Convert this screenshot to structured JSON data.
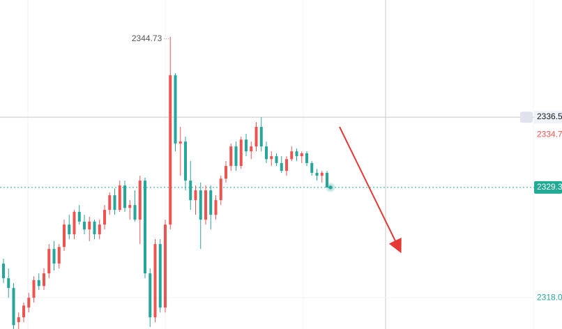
{
  "chart_data": {
    "type": "candlestick",
    "ylim": [
      2314.8,
      2348.5
    ],
    "yticks": [
      {
        "value": 2318.0,
        "label": "2318.0"
      }
    ],
    "crosshair_price": 2336.5,
    "marker_price": 2334.7,
    "last_price": 2329.3,
    "up_color": "#ef5350",
    "down_color": "#26a69a",
    "open": [
      2321.5,
      2320.0,
      2319.0,
      2315.5,
      2316.0,
      2317.0,
      2318.0,
      2319.8,
      2319.2,
      2320.5,
      2323.0,
      2321.5,
      2323.2,
      2325.5,
      2324.5,
      2326.8,
      2325.8,
      2325.0,
      2325.8,
      2324.5,
      2325.5,
      2327.0,
      2328.5,
      2327.0,
      2329.5,
      2327.2,
      2327.5,
      2326.0,
      2330.0,
      2320.5,
      2316.0,
      2323.5,
      2317.0,
      2325.5,
      2340.8,
      2333.8,
      2334.0,
      2330.0,
      2328.0,
      2329.0,
      2326.0,
      2329.0,
      2326.5,
      2328.0,
      2330.2,
      2331.5,
      2333.5,
      2331.5,
      2334.2,
      2333.0,
      2333.5,
      2335.5,
      2333.5,
      2332.2,
      2332.5,
      2331.8,
      2331.0,
      2332.2,
      2333.0,
      2332.5,
      2332.8,
      2331.8,
      2330.8,
      2330.5,
      2330.8
    ],
    "high": [
      2322.0,
      2321.0,
      2319.5,
      2316.5,
      2317.5,
      2318.5,
      2320.2,
      2320.5,
      2321.0,
      2323.5,
      2323.8,
      2323.5,
      2326.0,
      2326.5,
      2327.0,
      2327.5,
      2326.5,
      2326.3,
      2326.0,
      2326.0,
      2327.5,
      2328.8,
      2329.2,
      2330.0,
      2330.0,
      2328.0,
      2329.0,
      2330.5,
      2330.3,
      2321.0,
      2324.0,
      2324.0,
      2326.0,
      2344.73,
      2341.0,
      2335.5,
      2334.5,
      2332.0,
      2329.5,
      2329.8,
      2329.5,
      2329.5,
      2328.5,
      2330.5,
      2332.0,
      2333.8,
      2334.0,
      2334.5,
      2334.8,
      2334.0,
      2336.0,
      2336.5,
      2334.0,
      2333.0,
      2332.8,
      2332.5,
      2332.5,
      2333.5,
      2333.3,
      2333.0,
      2333.0,
      2332.0,
      2331.2,
      2331.0,
      2331.0
    ],
    "low": [
      2319.5,
      2318.0,
      2314.8,
      2314.8,
      2315.5,
      2316.5,
      2317.5,
      2318.8,
      2318.8,
      2320.0,
      2320.8,
      2321.0,
      2322.8,
      2324.0,
      2324.0,
      2325.5,
      2324.5,
      2323.8,
      2324.0,
      2324.0,
      2325.0,
      2326.5,
      2326.5,
      2326.8,
      2326.8,
      2326.0,
      2325.8,
      2323.5,
      2320.0,
      2315.0,
      2315.5,
      2316.5,
      2316.5,
      2325.0,
      2333.0,
      2330.5,
      2329.0,
      2327.0,
      2326.5,
      2323.0,
      2325.5,
      2325.0,
      2326.0,
      2327.5,
      2329.8,
      2331.0,
      2331.0,
      2331.2,
      2332.5,
      2332.2,
      2333.0,
      2333.0,
      2331.8,
      2331.5,
      2331.5,
      2330.8,
      2330.5,
      2332.0,
      2332.0,
      2331.8,
      2331.5,
      2330.5,
      2330.0,
      2329.8,
      2329.3
    ],
    "close": [
      2320.0,
      2319.0,
      2315.2,
      2316.0,
      2317.2,
      2318.0,
      2319.8,
      2319.2,
      2320.5,
      2323.0,
      2321.5,
      2323.2,
      2325.5,
      2324.5,
      2326.8,
      2325.8,
      2325.0,
      2325.8,
      2324.5,
      2325.5,
      2327.0,
      2328.5,
      2327.0,
      2329.5,
      2327.2,
      2327.5,
      2326.0,
      2330.0,
      2320.5,
      2316.0,
      2323.5,
      2317.0,
      2325.5,
      2340.8,
      2333.8,
      2334.0,
      2330.0,
      2328.0,
      2329.0,
      2326.0,
      2329.0,
      2326.5,
      2328.0,
      2330.2,
      2331.5,
      2333.5,
      2331.5,
      2334.2,
      2333.0,
      2333.5,
      2335.5,
      2333.5,
      2332.2,
      2332.5,
      2331.8,
      2331.0,
      2332.2,
      2333.0,
      2332.5,
      2332.8,
      2331.8,
      2330.8,
      2330.5,
      2330.8,
      2329.3
    ]
  }
}
